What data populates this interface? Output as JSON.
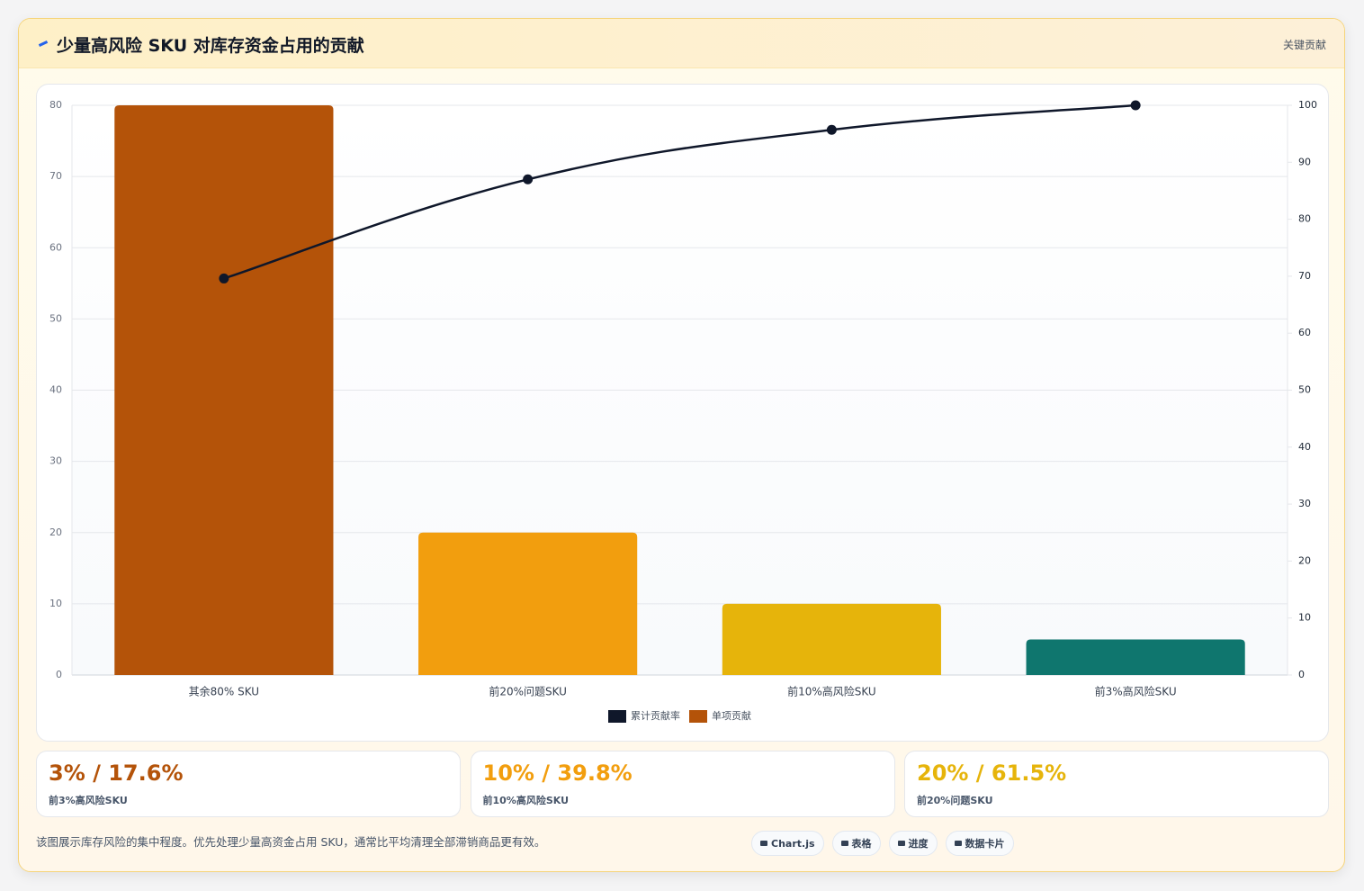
{
  "header": {
    "title": "少量高风险 SKU 对库存资金占用的贡献",
    "badge": "关键贡献"
  },
  "chart_data": {
    "type": "bar",
    "categories": [
      "其余80% SKU",
      "前20%问题SKU",
      "前10%高风险SKU",
      "前3%高风险SKU"
    ],
    "series": [
      {
        "name": "累计贡献率",
        "type": "line",
        "axis": "y2",
        "color": "#0f172a",
        "values": [
          69.6,
          87,
          95.7,
          100
        ]
      },
      {
        "name": "单项贡献",
        "type": "bar",
        "color": "#b45309",
        "colors": [
          "#b45309",
          "#f29e0e",
          "#e6b40b",
          "#0f766e"
        ],
        "values": [
          80,
          20,
          10,
          5
        ]
      }
    ],
    "ylim": [
      0,
      80
    ],
    "yticks": [
      0,
      10,
      20,
      30,
      40,
      50,
      60,
      70,
      80
    ],
    "y2lim": [
      0,
      100
    ],
    "y2ticks": [
      0,
      10,
      20,
      30,
      40,
      50,
      60,
      70,
      80,
      90,
      100
    ],
    "grid": true,
    "legend": "bottom"
  },
  "stats": [
    {
      "value": "3% / 17.6%",
      "label": "前3%高风险SKU",
      "color": "#b45309"
    },
    {
      "value": "10% / 39.8%",
      "label": "前10%高风险SKU",
      "color": "#f29e0e"
    },
    {
      "value": "20% / 61.5%",
      "label": "前20%问题SKU",
      "color": "#e6b40b"
    }
  ],
  "footer": {
    "note": "该图展示库存风险的集中程度。优先处理少量高资金占用 SKU，通常比平均清理全部滞销商品更有效。",
    "buttons": [
      "Chart.js",
      "表格",
      "进度",
      "数据卡片"
    ]
  }
}
